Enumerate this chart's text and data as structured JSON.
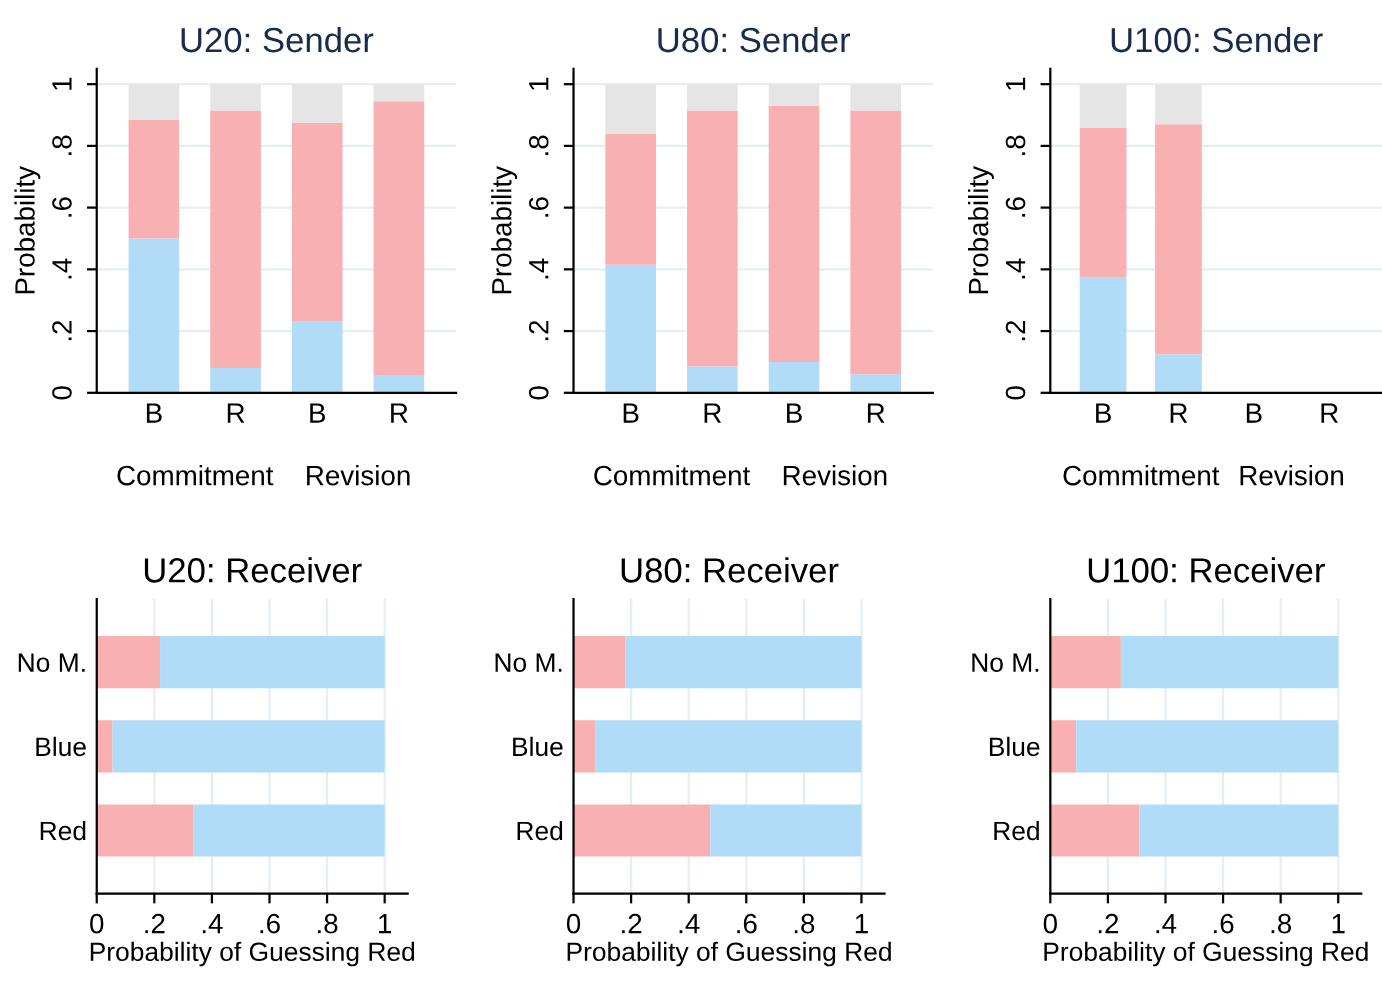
{
  "chart_data": [
    {
      "type": "bar",
      "stacked": true,
      "title": "U20: Sender",
      "ylabel": "Probability",
      "categories": [
        "B",
        "R",
        "B",
        "R"
      ],
      "annotations": [
        "Commitment",
        "Revision"
      ],
      "ylim": [
        0,
        1.05
      ],
      "yticks": [
        0,
        {
          "value": 0.2,
          "label": ".2"
        },
        {
          "value": 0.4,
          "label": ".4"
        },
        {
          "value": 0.6,
          "label": ".6"
        },
        {
          "value": 0.8,
          "label": ".8"
        },
        1
      ],
      "grid": "y",
      "legend": false,
      "series": [
        {
          "color": "#b0dcf8",
          "values": [
            0.5,
            0.08,
            0.23,
            0.055
          ]
        },
        {
          "color": "#f9b0b2",
          "values": [
            0.385,
            0.835,
            0.645,
            0.89
          ]
        },
        {
          "color": "#e5e5e5",
          "values": [
            0.115,
            0.085,
            0.125,
            0.055
          ]
        }
      ]
    },
    {
      "type": "bar",
      "stacked": true,
      "title": "U80: Sender",
      "ylabel": "Probability",
      "categories": [
        "B",
        "R",
        "B",
        "R"
      ],
      "annotations": [
        "Commitment",
        "Revision"
      ],
      "ylim": [
        0,
        1.05
      ],
      "yticks": [
        0,
        {
          "value": 0.2,
          "label": ".2"
        },
        {
          "value": 0.4,
          "label": ".4"
        },
        {
          "value": 0.6,
          "label": ".6"
        },
        {
          "value": 0.8,
          "label": ".8"
        },
        1
      ],
      "grid": "y",
      "legend": false,
      "series": [
        {
          "color": "#b0dcf8",
          "values": [
            0.415,
            0.085,
            0.1,
            0.06
          ]
        },
        {
          "color": "#f9b0b2",
          "values": [
            0.425,
            0.83,
            0.83,
            0.855
          ]
        },
        {
          "color": "#e5e5e5",
          "values": [
            0.16,
            0.085,
            0.07,
            0.085
          ]
        }
      ]
    },
    {
      "type": "bar",
      "stacked": true,
      "title": "U100: Sender",
      "ylabel": "Probability",
      "categories": [
        "B",
        "R",
        "B",
        "R"
      ],
      "annotations": [
        "Commitment",
        "Revision"
      ],
      "ylim": [
        0,
        1.05
      ],
      "yticks": [
        0,
        {
          "value": 0.2,
          "label": ".2"
        },
        {
          "value": 0.4,
          "label": ".4"
        },
        {
          "value": 0.6,
          "label": ".6"
        },
        {
          "value": 0.8,
          "label": ".8"
        },
        1
      ],
      "grid": "y",
      "legend": false,
      "series": [
        {
          "color": "#b0dcf8",
          "values": [
            0.375,
            0.125,
            null,
            null
          ]
        },
        {
          "color": "#f9b0b2",
          "values": [
            0.485,
            0.745,
            null,
            null
          ]
        },
        {
          "color": "#e5e5e5",
          "values": [
            0.14,
            0.13,
            null,
            null
          ]
        }
      ]
    },
    {
      "type": "bar",
      "stacked": true,
      "orientation": "horizontal",
      "title": "U20: Receiver",
      "xlabel": "Probability of Guessing Red",
      "categories": [
        "No M.",
        "Blue",
        "Red"
      ],
      "xlim": [
        0,
        1.08
      ],
      "xticks": [
        0,
        {
          "value": 0.2,
          "label": ".2"
        },
        {
          "value": 0.4,
          "label": ".4"
        },
        {
          "value": 0.6,
          "label": ".6"
        },
        {
          "value": 0.8,
          "label": ".8"
        },
        1
      ],
      "grid": "x",
      "legend": false,
      "series": [
        {
          "color": "#f9b0b2",
          "values": [
            0.22,
            0.055,
            0.335
          ]
        },
        {
          "color": "#b0dcf8",
          "values": [
            0.78,
            0.945,
            0.665
          ]
        }
      ]
    },
    {
      "type": "bar",
      "stacked": true,
      "orientation": "horizontal",
      "title": "U80: Receiver",
      "xlabel": "Probability of Guessing Red",
      "categories": [
        "No M.",
        "Blue",
        "Red"
      ],
      "xlim": [
        0,
        1.08
      ],
      "xticks": [
        0,
        {
          "value": 0.2,
          "label": ".2"
        },
        {
          "value": 0.4,
          "label": ".4"
        },
        {
          "value": 0.6,
          "label": ".6"
        },
        {
          "value": 0.8,
          "label": ".8"
        },
        1
      ],
      "grid": "x",
      "legend": false,
      "series": [
        {
          "color": "#f9b0b2",
          "values": [
            0.18,
            0.075,
            0.475
          ]
        },
        {
          "color": "#b0dcf8",
          "values": [
            0.82,
            0.925,
            0.525
          ]
        }
      ]
    },
    {
      "type": "bar",
      "stacked": true,
      "orientation": "horizontal",
      "title": "U100: Receiver",
      "xlabel": "Probability of Guessing Red",
      "categories": [
        "No M.",
        "Blue",
        "Red"
      ],
      "xlim": [
        0,
        1.08
      ],
      "xticks": [
        0,
        {
          "value": 0.2,
          "label": ".2"
        },
        {
          "value": 0.4,
          "label": ".4"
        },
        {
          "value": 0.6,
          "label": ".6"
        },
        {
          "value": 0.8,
          "label": ".8"
        },
        1
      ],
      "grid": "x",
      "legend": false,
      "series": [
        {
          "color": "#f9b0b2",
          "values": [
            0.245,
            0.09,
            0.31
          ]
        },
        {
          "color": "#b0dcf8",
          "values": [
            0.755,
            0.91,
            0.69
          ]
        }
      ]
    }
  ]
}
